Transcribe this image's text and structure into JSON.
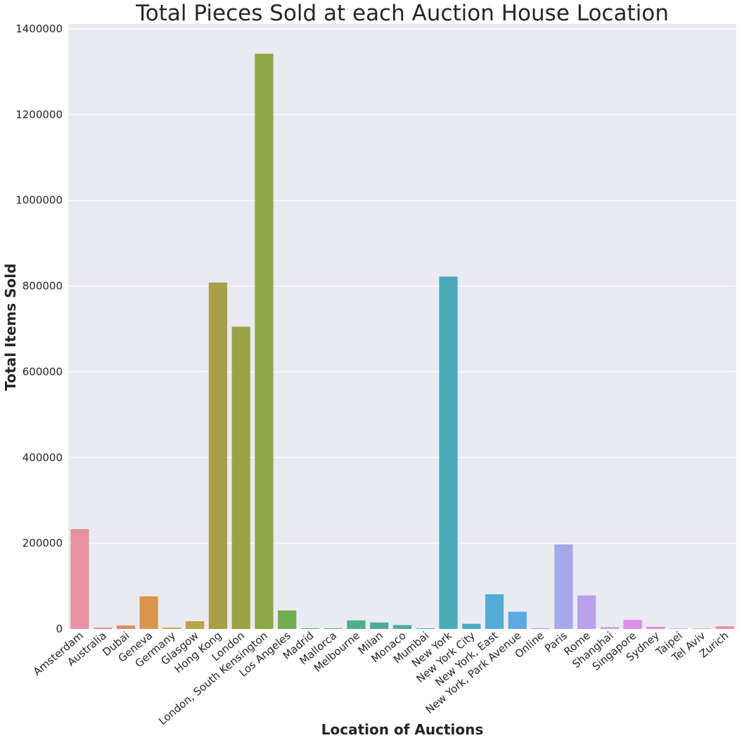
{
  "chart_data": {
    "type": "bar",
    "title": "Total Pieces Sold at each Auction House Location",
    "xlabel": "Location of Auctions",
    "ylabel": "Total Items Sold",
    "ylim": [
      0,
      1400000
    ],
    "yticks": [
      0,
      200000,
      400000,
      600000,
      800000,
      1000000,
      1200000,
      1400000
    ],
    "grid": true,
    "categories": [
      "Amsterdam",
      "Australia",
      "Dubai",
      "Geneva",
      "Germany",
      "Glasgow",
      "Hong Kong",
      "London",
      "London, South Kensington",
      "Los Angeles",
      "Madrid",
      "Mallorca",
      "Melbourne",
      "Milan",
      "Monaco",
      "Mumbai",
      "New York",
      "New York City",
      "New York, East",
      "New York, Park Avenue",
      "Online",
      "Paris",
      "Rome",
      "Shanghai",
      "Singapore",
      "Sydney",
      "Taipei",
      "Tel Aviv",
      "Zurich"
    ],
    "values": [
      233000,
      3000,
      8000,
      76000,
      3000,
      18000,
      808000,
      705000,
      1342000,
      43000,
      1500,
      1500,
      20000,
      15000,
      9000,
      1500,
      822000,
      12000,
      81000,
      40000,
      1500,
      197000,
      78000,
      4000,
      21000,
      5000,
      1000,
      1000,
      6000
    ],
    "colors": [
      "#E8929F",
      "#E8877F",
      "#E08D5B",
      "#D9964B",
      "#C9A04A",
      "#B9A24A",
      "#A89F48",
      "#9AA247",
      "#8CA847",
      "#72AE4D",
      "#4FB360",
      "#4EB07A",
      "#4CAE8A",
      "#4BAD98",
      "#4BACA2",
      "#4AAAAE",
      "#4AABB8",
      "#4BABC5",
      "#52ACD6",
      "#5EA8E6",
      "#8AA3EA",
      "#A6A8EA",
      "#B8A1EA",
      "#CB96EA",
      "#DD8EE8",
      "#E68ACF",
      "#E88AB9",
      "#E88DAA",
      "#E890A2"
    ]
  }
}
